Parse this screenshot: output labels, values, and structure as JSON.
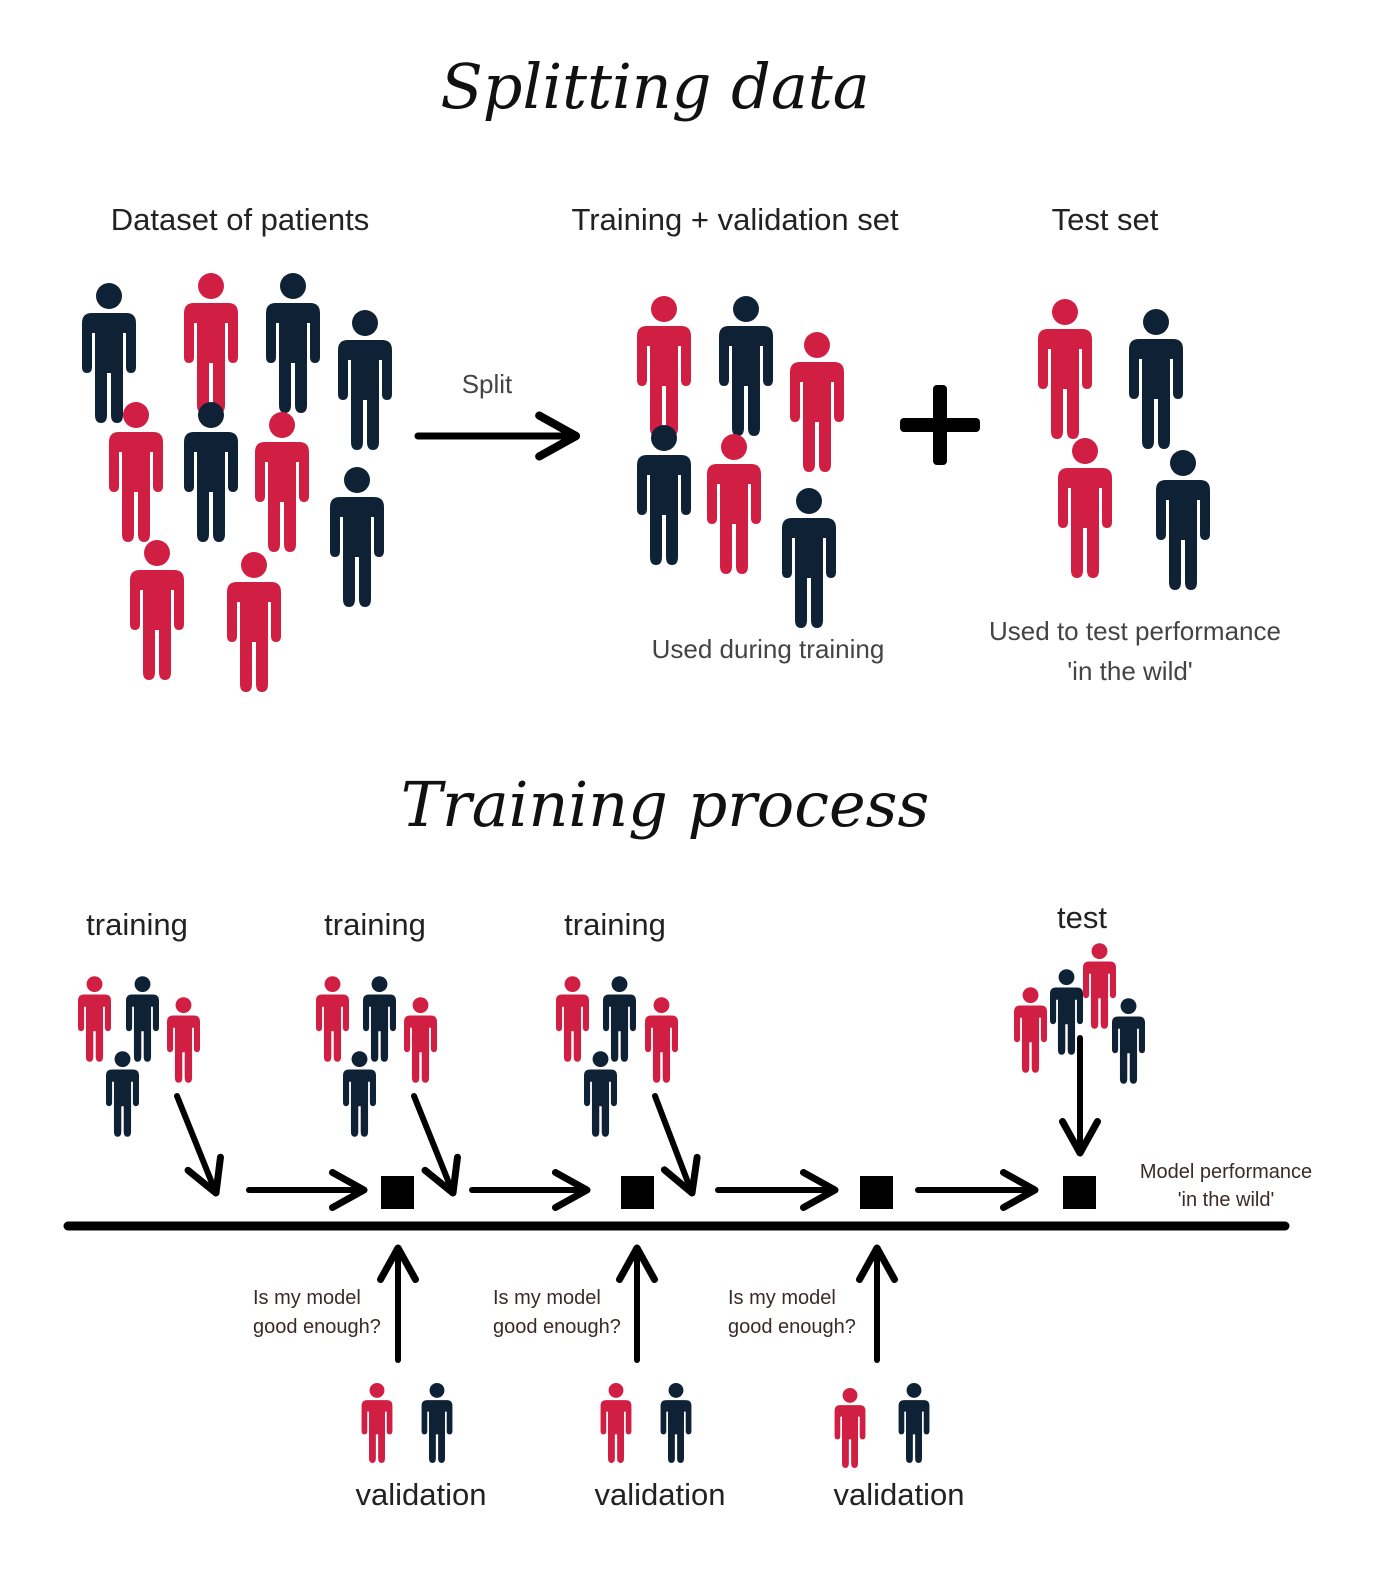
{
  "colors": {
    "red": "#d11f44",
    "navy": "#0f2235",
    "ink": "#000000"
  },
  "icons": {
    "person": "person-icon",
    "arrow": "arrow-icon",
    "plus": "plus-icon",
    "checkpoint": "square-icon"
  },
  "splitting": {
    "title": "Splitting data",
    "dataset_label": "Dataset of patients",
    "split_label": "Split",
    "trainval_label": "Training + validation set",
    "test_label": "Test set",
    "trainval_note": "Used during training",
    "test_note_line1": "Used to test performance",
    "test_note_line2": "'in the wild'",
    "dataset_people": [
      "navy",
      "red",
      "navy",
      "navy",
      "red",
      "navy",
      "red",
      "navy",
      "red",
      "red"
    ],
    "trainval_people": [
      "red",
      "navy",
      "red",
      "navy",
      "red",
      "navy"
    ],
    "test_people": [
      "red",
      "navy",
      "red",
      "navy"
    ]
  },
  "training": {
    "title": "Training process",
    "steps": [
      {
        "label": "training",
        "people": [
          "red",
          "navy",
          "red",
          "navy"
        ]
      },
      {
        "label": "training",
        "people": [
          "red",
          "navy",
          "red",
          "navy"
        ]
      },
      {
        "label": "training",
        "people": [
          "red",
          "navy",
          "red",
          "navy"
        ]
      }
    ],
    "test_label": "test",
    "test_people": [
      "red",
      "navy",
      "red",
      "navy"
    ],
    "model_perf_line1": "Model performance",
    "model_perf_line2": "'in the wild'",
    "validations": [
      {
        "label": "validation",
        "question_line1": "Is my model",
        "question_line2": "good enough?",
        "people": [
          "red",
          "navy"
        ]
      },
      {
        "label": "validation",
        "question_line1": "Is my model",
        "question_line2": "good enough?",
        "people": [
          "red",
          "navy"
        ]
      },
      {
        "label": "validation",
        "question_line1": "Is my model",
        "question_line2": "good enough?",
        "people": [
          "red",
          "navy"
        ]
      }
    ]
  }
}
